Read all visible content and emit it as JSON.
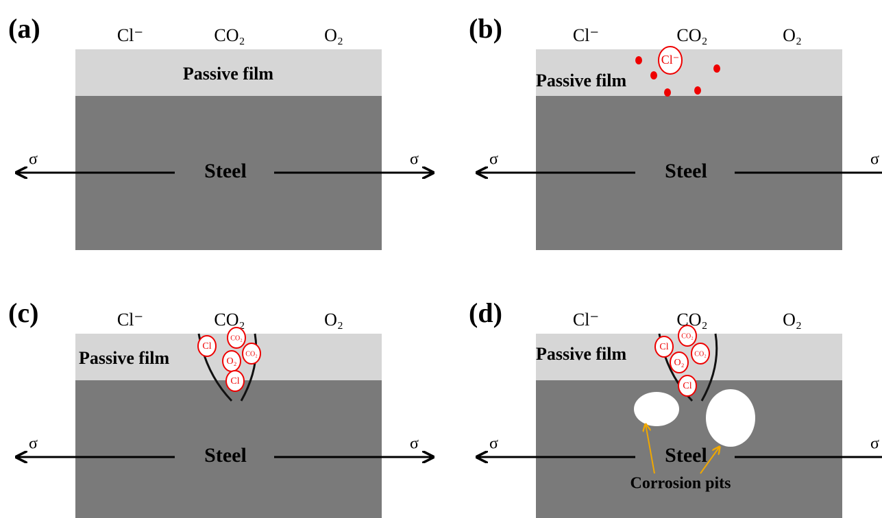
{
  "panels": [
    {
      "label": "(a)",
      "ions": [
        "Cl⁻",
        "CO₂",
        "O₂"
      ],
      "film": "Passive film",
      "steel": "Steel",
      "stress_left": "σ",
      "stress_right": "σ",
      "particles": []
    },
    {
      "label": "(b)",
      "ions": [
        "Cl⁻",
        "CO₂",
        "O₂"
      ],
      "film": "Passive film",
      "steel": "Steel",
      "stress_left": "σ",
      "stress_right": "σ",
      "particles": [
        "Cl⁻"
      ]
    },
    {
      "label": "(c)",
      "ions": [
        "Cl⁻",
        "CO₂",
        "O₂"
      ],
      "film": "Passive film",
      "steel": "Steel",
      "stress_left": "σ",
      "stress_right": "σ",
      "particles": [
        "Cl",
        "CO₂",
        "O₂",
        "CO₂",
        "Cl"
      ]
    },
    {
      "label": "(d)",
      "ions": [
        "Cl⁻",
        "CO₂",
        "O₂"
      ],
      "film": "Passive film",
      "steel": "Steel",
      "stress_left": "σ",
      "stress_right": "σ",
      "particles": [
        "Cl",
        "CO₂",
        "O₂",
        "CO₂",
        "Cl"
      ],
      "annotation": "Corrosion pits"
    }
  ]
}
